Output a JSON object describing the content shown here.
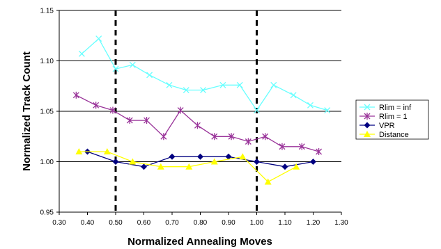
{
  "chart_data": {
    "type": "line",
    "title": "",
    "xlabel": "Normalized Annealing Moves",
    "ylabel": "Normalized Track Count",
    "xlim": [
      0.3,
      1.3
    ],
    "ylim": [
      0.95,
      1.15
    ],
    "xticks": [
      "0.30",
      "0.40",
      "0.50",
      "0.60",
      "0.70",
      "0.80",
      "0.90",
      "1.00",
      "1.10",
      "1.20",
      "1.30"
    ],
    "yticks": [
      "0.95",
      "1.00",
      "1.05",
      "1.10",
      "1.15"
    ],
    "grid": "horizontal",
    "vertical_reference_lines": [
      0.5,
      1.0
    ],
    "legend_position": "right",
    "series": [
      {
        "name": "Rlim = inf",
        "color": "#66ffff",
        "marker": "x",
        "x": [
          0.38,
          0.44,
          0.5,
          0.56,
          0.62,
          0.69,
          0.75,
          0.81,
          0.88,
          0.94,
          1.0,
          1.06,
          1.13,
          1.19,
          1.25
        ],
        "y": [
          1.107,
          1.122,
          1.092,
          1.096,
          1.086,
          1.076,
          1.071,
          1.071,
          1.076,
          1.076,
          1.051,
          1.076,
          1.066,
          1.056,
          1.051
        ]
      },
      {
        "name": "Rlim = 1",
        "color": "#993399",
        "marker": "asterisk",
        "x": [
          0.36,
          0.43,
          0.49,
          0.55,
          0.61,
          0.67,
          0.73,
          0.79,
          0.85,
          0.91,
          0.97,
          1.03,
          1.09,
          1.16,
          1.22
        ],
        "y": [
          1.066,
          1.056,
          1.051,
          1.041,
          1.041,
          1.025,
          1.051,
          1.036,
          1.025,
          1.025,
          1.02,
          1.025,
          1.015,
          1.015,
          1.01
        ]
      },
      {
        "name": "VPR",
        "color": "#000080",
        "marker": "diamond",
        "x": [
          0.4,
          0.5,
          0.6,
          0.7,
          0.8,
          0.9,
          1.0,
          1.1,
          1.2
        ],
        "y": [
          1.01,
          1.0,
          0.995,
          1.005,
          1.005,
          1.005,
          1.0,
          0.995,
          1.0
        ]
      },
      {
        "name": "Distance",
        "color": "#ffff00",
        "marker": "triangle",
        "x": [
          0.37,
          0.47,
          0.56,
          0.66,
          0.76,
          0.85,
          0.95,
          1.04,
          1.14
        ],
        "y": [
          1.01,
          1.01,
          1.0,
          0.995,
          0.995,
          1.0,
          1.005,
          0.98,
          0.995
        ]
      }
    ]
  }
}
